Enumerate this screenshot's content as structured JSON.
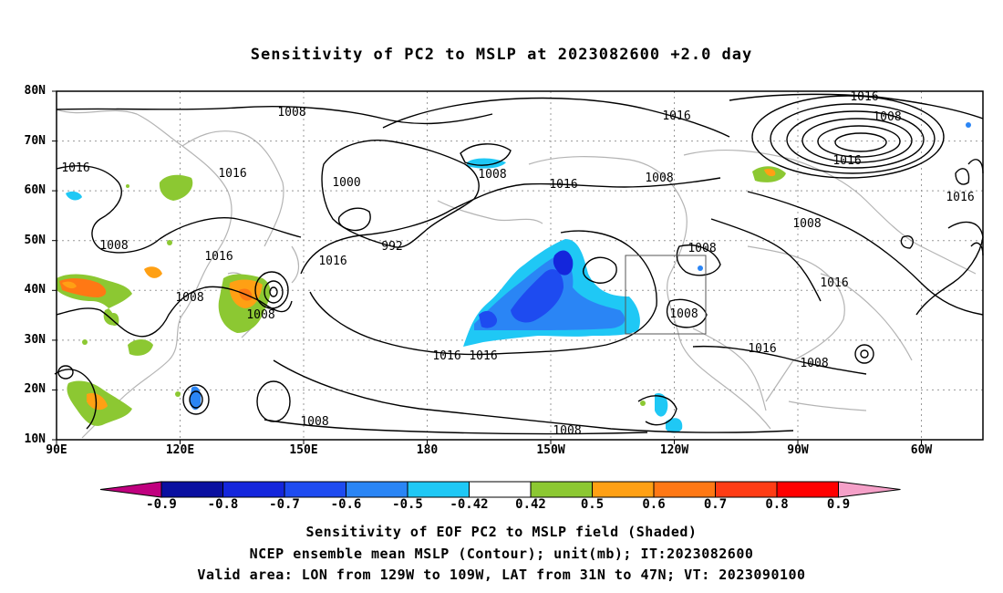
{
  "title": "Sensitivity of PC2 to MSLP at 2023082600 +2.0 day",
  "lat_labels": [
    "80N",
    "70N",
    "60N",
    "50N",
    "40N",
    "30N",
    "20N",
    "10N"
  ],
  "lon_labels": [
    "90E",
    "120E",
    "150E",
    "180",
    "150W",
    "120W",
    "90W",
    "60W"
  ],
  "contour_labels": [
    "1008",
    "1016",
    "1016",
    "1008",
    "1016",
    "1016",
    "1008",
    "1008",
    "1016",
    "1016",
    "1016",
    "1008",
    "1000",
    "992",
    "1016",
    "1008",
    "1016",
    "1008",
    "1016",
    "1008",
    "1008",
    "1008",
    "1016",
    "1008",
    "1008",
    "1008",
    "1016",
    "1016"
  ],
  "colorbar": {
    "labels": [
      "-0.9",
      "-0.8",
      "-0.7",
      "-0.6",
      "-0.5",
      "-0.42",
      "0.42",
      "0.5",
      "0.6",
      "0.7",
      "0.8",
      "0.9"
    ],
    "colors": [
      "#c0007f",
      "#0a0fa0",
      "#1426dc",
      "#1e4bf0",
      "#2a85f5",
      "#1fc8f5",
      "#ffffff",
      "#8cc832",
      "#ffa014",
      "#ff7814",
      "#ff3c14",
      "#ff0000",
      "#f5a0c8"
    ]
  },
  "footer": {
    "line1": "Sensitivity of EOF PC2 to MSLP field (Shaded)",
    "line2": "NCEP ensemble mean MSLP (Contour); unit(mb); IT:2023082600",
    "line3": "Valid area: LON from 129W to 109W, LAT from 31N to 47N; VT: 2023090100"
  }
}
